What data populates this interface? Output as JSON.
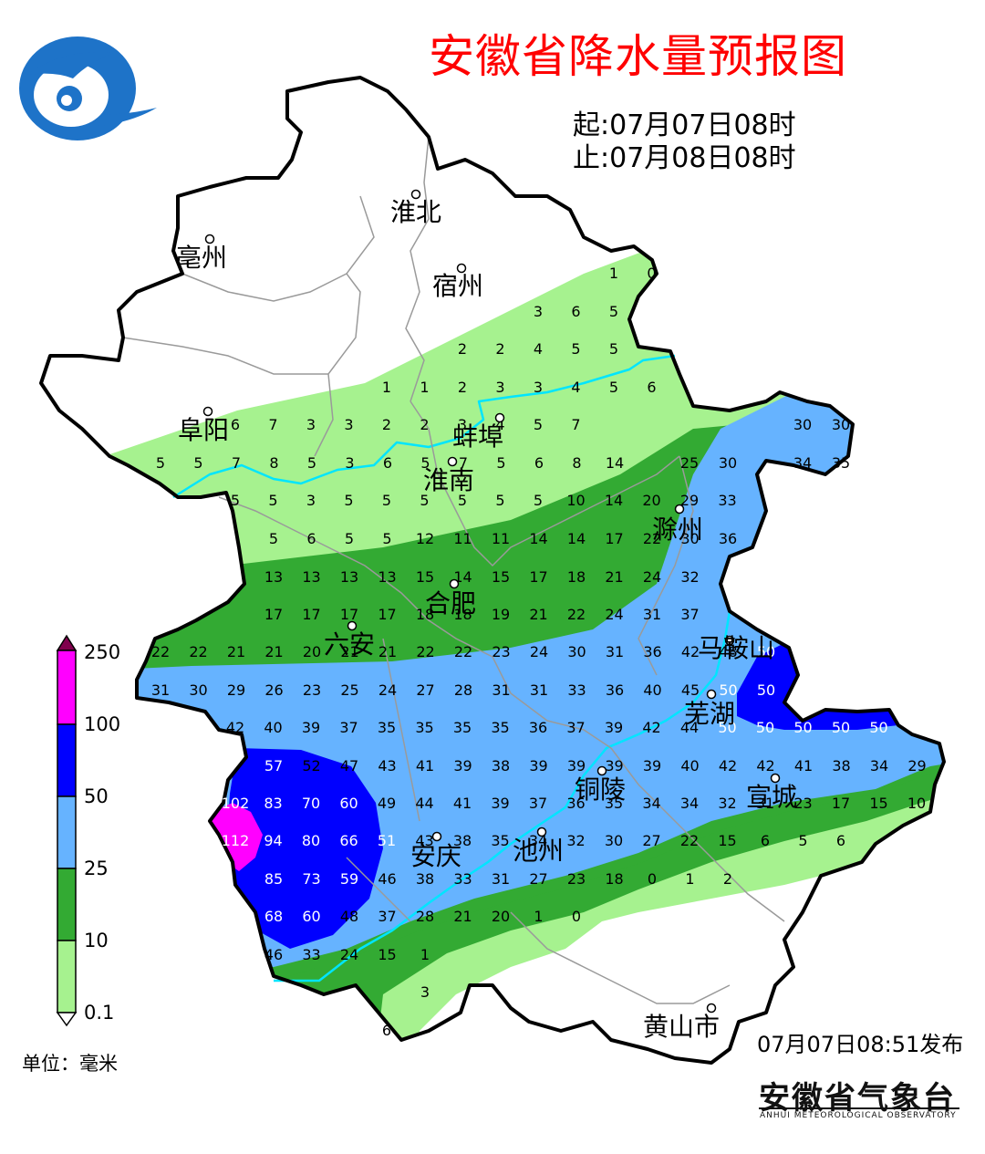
{
  "title": "安徽省降水量预报图",
  "period": {
    "start": "起:07月07日08时",
    "end": "止:07月08日08时"
  },
  "legend": {
    "levels": [
      "250",
      "100",
      "50",
      "25",
      "10",
      "0.1"
    ],
    "colors": [
      "#ff00ff",
      "#0000ff",
      "#66b3ff",
      "#33aa33",
      "#a6f28f"
    ],
    "unit": "单位：毫米"
  },
  "cities": [
    {
      "name": "淮北"
    },
    {
      "name": "亳州"
    },
    {
      "name": "宿州"
    },
    {
      "name": "阜阳"
    },
    {
      "name": "蚌埠"
    },
    {
      "name": "淮南"
    },
    {
      "name": "滁州"
    },
    {
      "name": "合肥"
    },
    {
      "name": "六安"
    },
    {
      "name": "马鞍山"
    },
    {
      "name": "芜湖"
    },
    {
      "name": "铜陵"
    },
    {
      "name": "宣城"
    },
    {
      "name": "安庆"
    },
    {
      "name": "池州"
    },
    {
      "name": "黄山市"
    }
  ],
  "grid_rows": [
    [
      "1",
      "0"
    ],
    [
      "3",
      "6",
      "5"
    ],
    [
      "2",
      "2",
      "4",
      "5",
      "5"
    ],
    [
      "1",
      "1",
      "2",
      "3",
      "3",
      "4",
      "5",
      "6"
    ],
    [
      "6",
      "7",
      "3",
      "3",
      "2",
      "2",
      "3",
      "4",
      "5",
      "7",
      "30",
      "30"
    ],
    [
      "5",
      "5",
      "7",
      "8",
      "5",
      "3",
      "6",
      "5",
      "7",
      "5",
      "6",
      "8",
      "14",
      "25",
      "30",
      "34",
      "35"
    ],
    [
      "5",
      "5",
      "3",
      "5",
      "5",
      "5",
      "5",
      "5",
      "5",
      "10",
      "14",
      "20",
      "29",
      "33"
    ],
    [
      "5",
      "6",
      "5",
      "5",
      "12",
      "11",
      "11",
      "14",
      "14",
      "17",
      "22",
      "30",
      "36"
    ],
    [
      "13",
      "13",
      "13",
      "13",
      "15",
      "14",
      "15",
      "17",
      "18",
      "21",
      "24",
      "32"
    ],
    [
      "17",
      "17",
      "17",
      "17",
      "18",
      "18",
      "19",
      "21",
      "22",
      "24",
      "31",
      "37"
    ],
    [
      "22",
      "22",
      "21",
      "21",
      "20",
      "21",
      "21",
      "22",
      "22",
      "23",
      "24",
      "30",
      "31",
      "36",
      "42",
      "48",
      "50"
    ],
    [
      "31",
      "30",
      "29",
      "26",
      "23",
      "25",
      "24",
      "27",
      "28",
      "31",
      "31",
      "33",
      "36",
      "40",
      "45",
      "50",
      "50"
    ],
    [
      "42",
      "40",
      "39",
      "37",
      "35",
      "35",
      "35",
      "35",
      "36",
      "37",
      "39",
      "42",
      "44",
      "50",
      "50",
      "50",
      "50",
      "50"
    ],
    [
      "57",
      "52",
      "47",
      "43",
      "41",
      "39",
      "38",
      "39",
      "39",
      "39",
      "39",
      "40",
      "42",
      "42",
      "41",
      "38",
      "34",
      "29"
    ],
    [
      "102",
      "83",
      "70",
      "60",
      "49",
      "44",
      "41",
      "39",
      "37",
      "36",
      "35",
      "34",
      "34",
      "32",
      "31",
      "23",
      "17",
      "15",
      "10"
    ],
    [
      "112",
      "94",
      "80",
      "66",
      "51",
      "43",
      "38",
      "35",
      "34",
      "32",
      "30",
      "27",
      "22",
      "15",
      "6",
      "5",
      "6"
    ],
    [
      "85",
      "73",
      "59",
      "46",
      "38",
      "33",
      "31",
      "27",
      "23",
      "18",
      "0",
      "1",
      "2"
    ],
    [
      "68",
      "60",
      "48",
      "37",
      "28",
      "21",
      "20",
      "1",
      "0"
    ],
    [
      "46",
      "33",
      "24",
      "15",
      "1"
    ],
    [
      "3"
    ],
    [
      "6"
    ]
  ],
  "issue_time": "07月07日08:51发布",
  "publisher": {
    "name": "安徽省气象台",
    "english": "ANHUI METEOROLOGICAL OBSERVATORY"
  }
}
